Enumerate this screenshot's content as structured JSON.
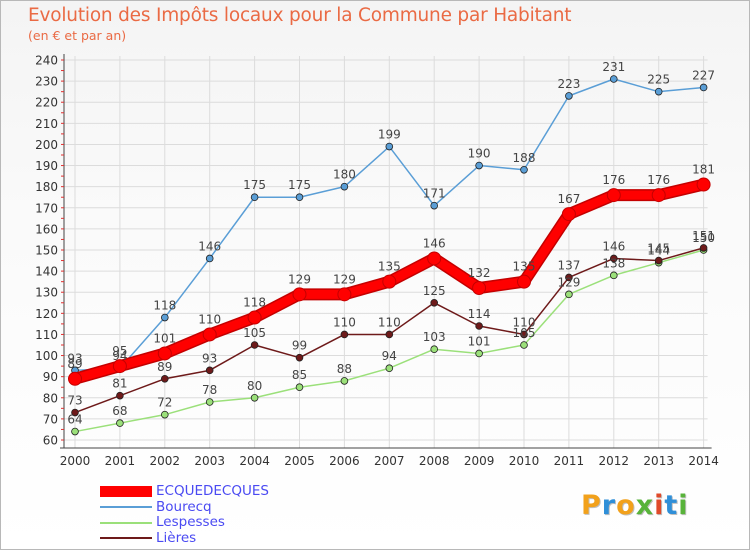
{
  "header": {
    "title": "Evolution des Impôts locaux pour la Commune par Habitant",
    "subtitle": "(en € et par an)"
  },
  "logo": {
    "letters": [
      "P",
      "r",
      "o",
      "x",
      "i",
      "t",
      "i"
    ],
    "colors": [
      "#f2a11b",
      "#2f8fd8",
      "#f2a11b",
      "#58b33a",
      "#e04a2a",
      "#2f8fd8",
      "#58b33a"
    ]
  },
  "chart_data": {
    "type": "line",
    "title": "Evolution des Impôts locaux pour la Commune par Habitant",
    "subtitle": "(en € et par an)",
    "x": [
      2000,
      2001,
      2002,
      2003,
      2004,
      2005,
      2006,
      2007,
      2008,
      2009,
      2010,
      2011,
      2012,
      2013,
      2014
    ],
    "ylim": [
      60,
      240
    ],
    "y_ticks": [
      60,
      70,
      80,
      90,
      100,
      110,
      120,
      130,
      140,
      150,
      160,
      170,
      180,
      190,
      200,
      210,
      220,
      230,
      240
    ],
    "grid": true,
    "legend_position": "bottom-left",
    "series": [
      {
        "name": "ECQUEDECQUES",
        "color": "#ff0000",
        "values": [
          89,
          95,
          101,
          110,
          118,
          129,
          129,
          135,
          146,
          132,
          135,
          167,
          176,
          176,
          181
        ]
      },
      {
        "name": "Bourecq",
        "color": "#5a9ed6",
        "values": [
          93,
          94,
          118,
          146,
          175,
          175,
          180,
          199,
          171,
          190,
          188,
          223,
          231,
          225,
          227
        ]
      },
      {
        "name": "Lespesses",
        "color": "#9be07a",
        "values": [
          64,
          68,
          72,
          78,
          80,
          85,
          88,
          94,
          103,
          101,
          105,
          129,
          138,
          144,
          150
        ]
      },
      {
        "name": "Lières",
        "color": "#6e1a1a",
        "values": [
          73,
          81,
          89,
          93,
          105,
          99,
          110,
          110,
          125,
          114,
          110,
          137,
          146,
          145,
          151
        ]
      }
    ]
  }
}
